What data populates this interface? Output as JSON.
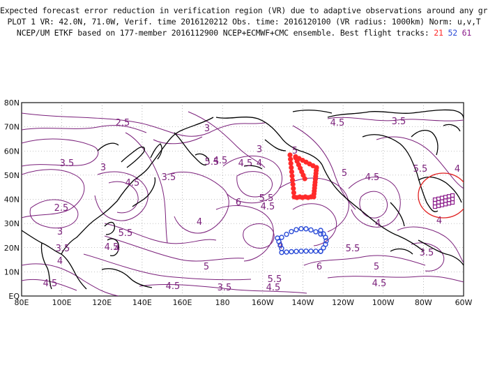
{
  "header": {
    "line1": "Expected forecast error reduction in verification region (VR) due to adaptive observations around any grid point.",
    "line2": "PLOT 1 VR: 42.0N, 71.0W, Verif. time 2016120212 Obs. time: 2016120100 (VR radius: 1000km) Norm: u,v,T",
    "line3_prefix": "NCEP/UM ETKF based on 177-member 2016112900 NCEP+ECMWF+CMC ensemble. Best flight tracks: ",
    "track_ids": [
      {
        "id": "21",
        "color": "#ff2a2a"
      },
      {
        "id": "52",
        "color": "#2a4bd7"
      },
      {
        "id": "61",
        "color": "#8a1a8a"
      }
    ]
  },
  "map": {
    "lat_labels": [
      "80N",
      "70N",
      "60N",
      "50N",
      "40N",
      "30N",
      "20N",
      "10N",
      "EQ"
    ],
    "lon_labels": [
      "80E",
      "100E",
      "120E",
      "140E",
      "160E",
      "180",
      "160W",
      "140W",
      "120W",
      "100W",
      "80W",
      "60W"
    ],
    "contour_color": "#7a1f7a",
    "contour_labels": [
      "2.5",
      "3",
      "3.5",
      "4",
      "4.5",
      "5",
      "5.5",
      "6"
    ],
    "verification_circle_color": "#e02020"
  }
}
